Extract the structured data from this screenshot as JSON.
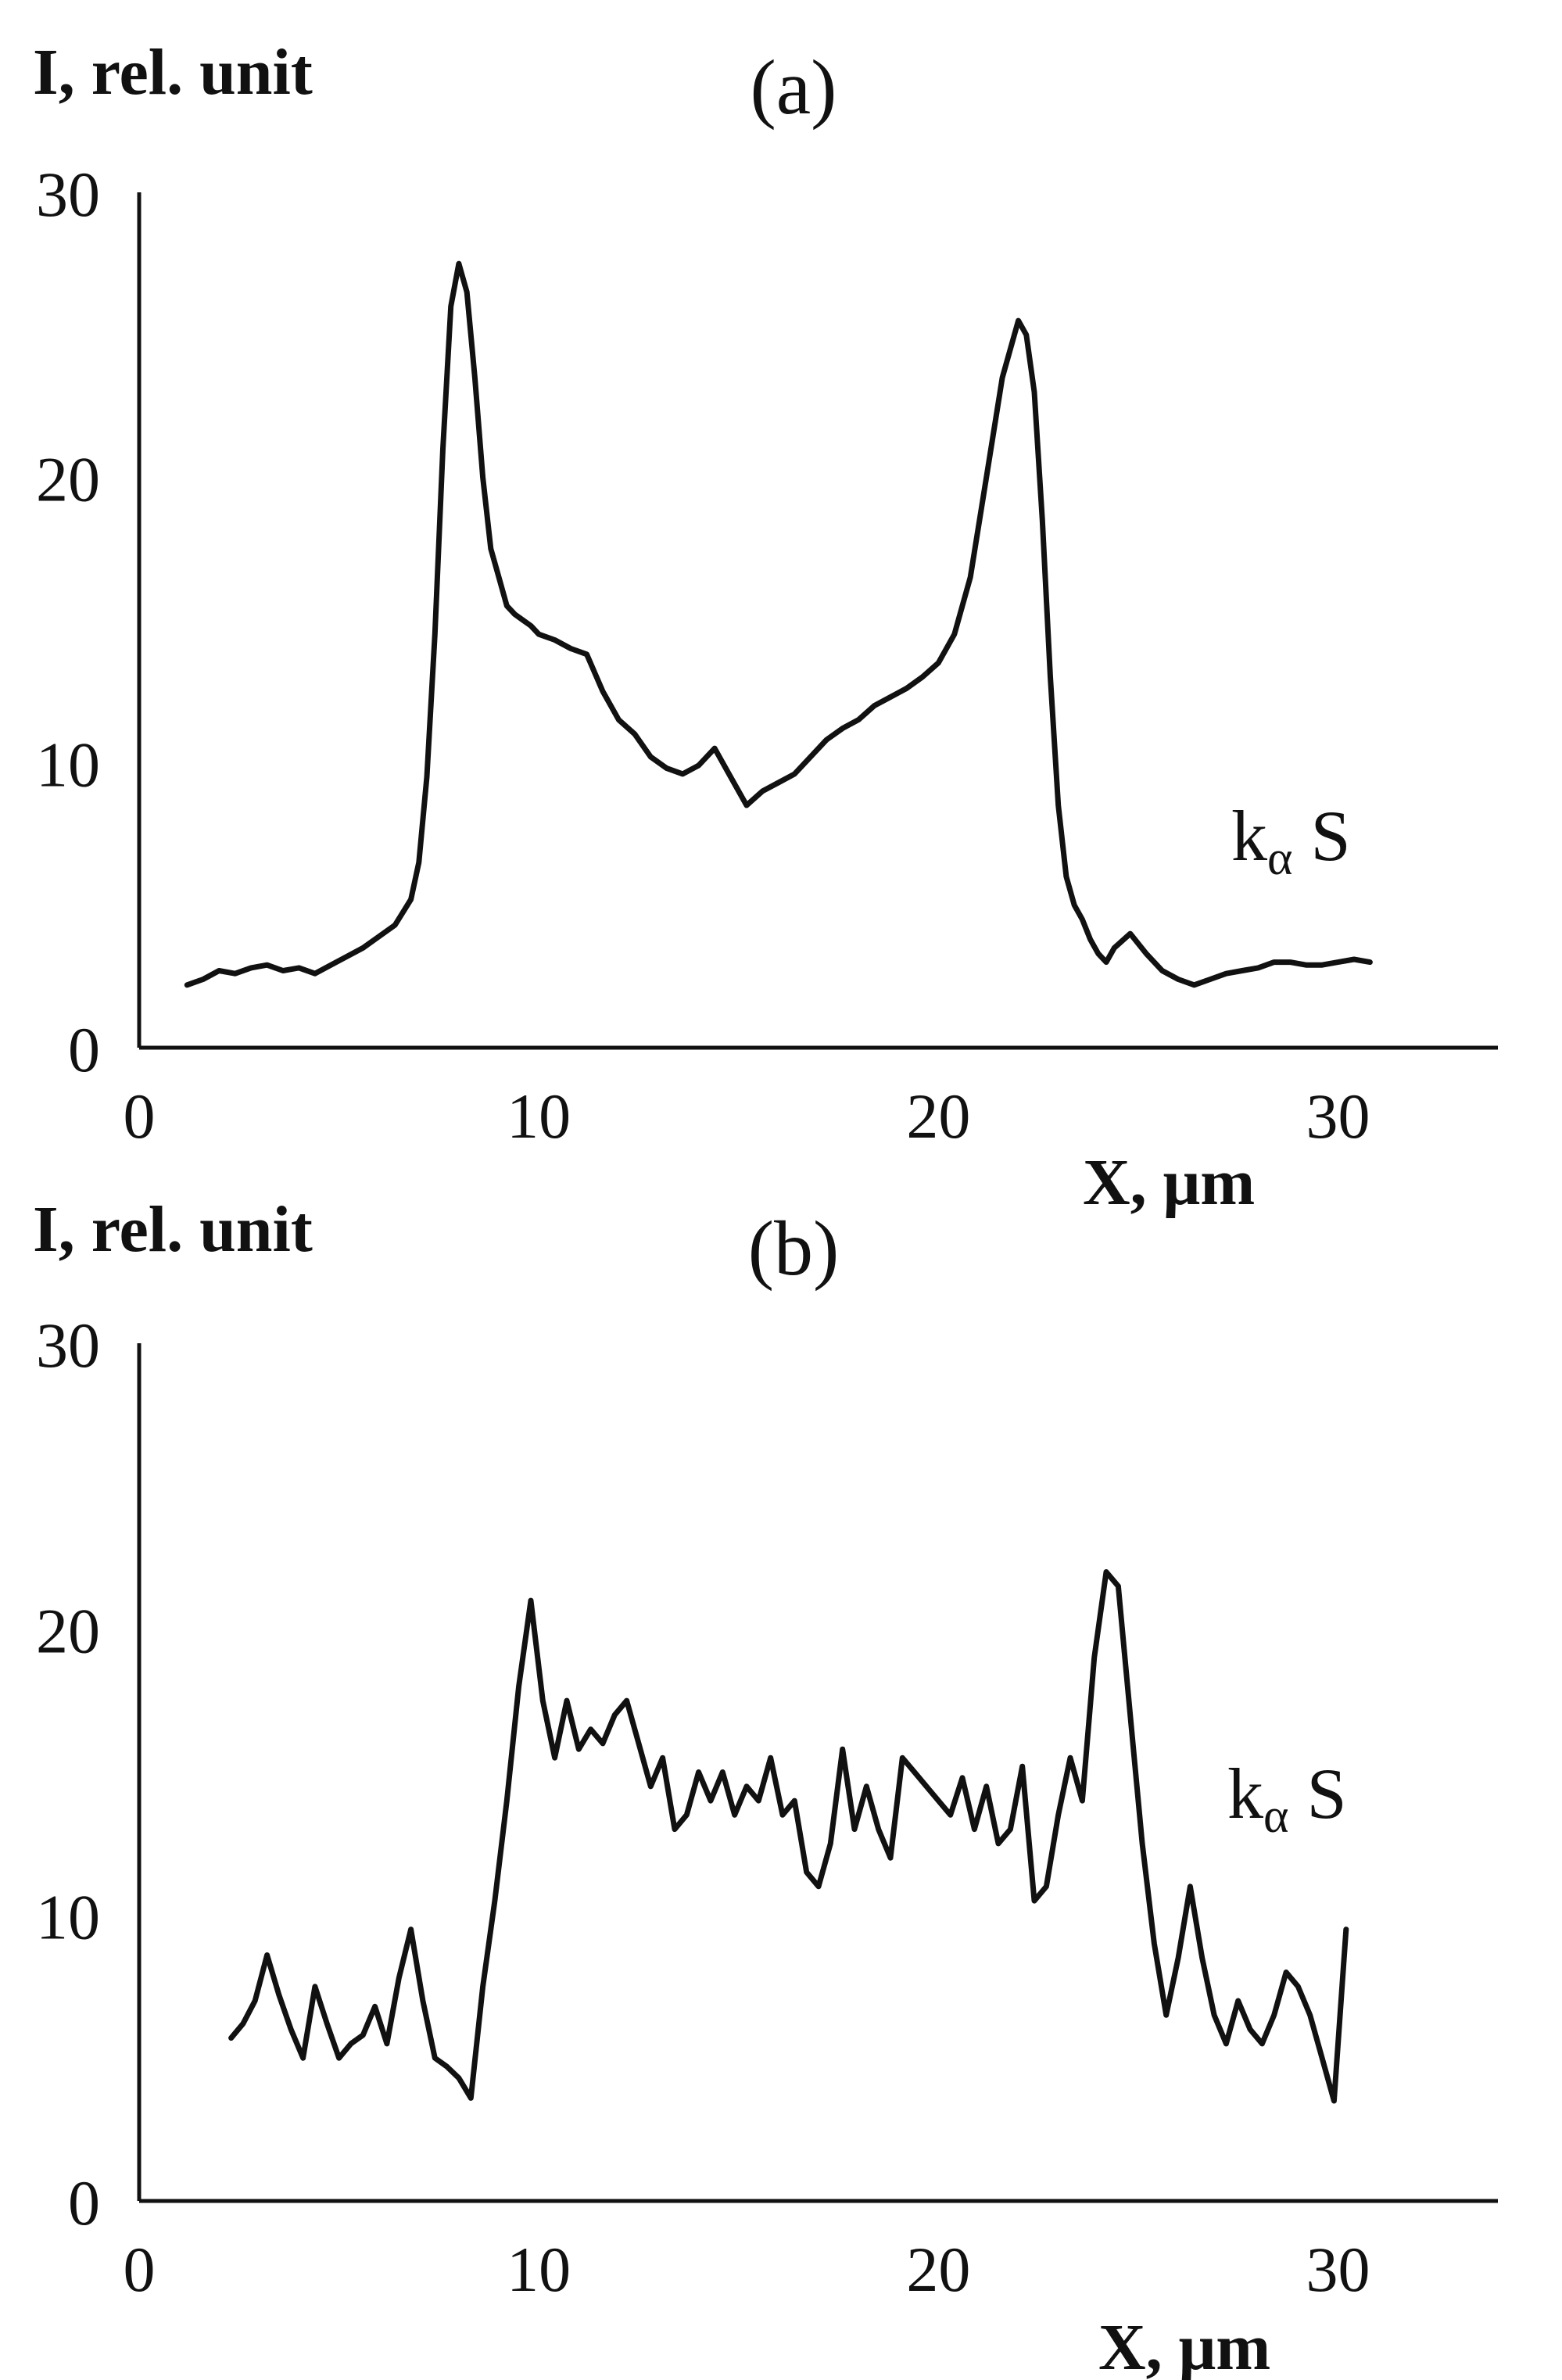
{
  "chart_data": [
    {
      "type": "line",
      "title": "(a)",
      "xlabel": "X, μm",
      "ylabel": "I, rel. unit",
      "xlim": [
        0,
        34
      ],
      "ylim": [
        0,
        30
      ],
      "xticks": [
        "0",
        "10",
        "20",
        "30"
      ],
      "yticks": [
        "0",
        "10",
        "20",
        "30"
      ],
      "grid": false,
      "annotation": {
        "main": "k",
        "sub": "α",
        "tail": " S"
      },
      "colors": {
        "line": "#111111",
        "axis": "#111111"
      },
      "series": [
        {
          "x": [
            1.2,
            1.6,
            2.0,
            2.4,
            2.8,
            3.2,
            3.6,
            4.0,
            4.4,
            4.8,
            5.2,
            5.6,
            6.0,
            6.4,
            6.8,
            7.0,
            7.2,
            7.4,
            7.6,
            7.8,
            8.0,
            8.2,
            8.4,
            8.6,
            8.8,
            9.0,
            9.2,
            9.4,
            9.6,
            9.8,
            10.0,
            10.4,
            10.8,
            11.2,
            11.6,
            12.0,
            12.4,
            12.8,
            13.2,
            13.6,
            14.0,
            14.4,
            14.8,
            15.2,
            15.6,
            16.0,
            16.4,
            16.8,
            17.2,
            17.6,
            18.0,
            18.4,
            18.8,
            19.2,
            19.6,
            20.0,
            20.4,
            20.8,
            21.2,
            21.6,
            22.0,
            22.2,
            22.4,
            22.6,
            22.8,
            23.0,
            23.2,
            23.4,
            23.6,
            23.8,
            24.0,
            24.2,
            24.4,
            24.8,
            25.2,
            25.6,
            26.0,
            26.4,
            26.8,
            27.2,
            27.6,
            28.0,
            28.4,
            28.8,
            29.2,
            29.6,
            30.0,
            30.4,
            30.8
          ],
          "y": [
            2.2,
            2.4,
            2.7,
            2.6,
            2.8,
            2.9,
            2.7,
            2.8,
            2.6,
            2.9,
            3.2,
            3.5,
            3.9,
            4.3,
            5.2,
            6.5,
            9.5,
            14.5,
            21.0,
            26.0,
            27.5,
            26.5,
            23.5,
            20.0,
            17.5,
            16.5,
            15.5,
            15.2,
            15.0,
            14.8,
            14.5,
            14.3,
            14.0,
            13.8,
            12.5,
            11.5,
            11.0,
            10.2,
            9.8,
            9.6,
            9.9,
            10.5,
            9.5,
            8.5,
            9.0,
            9.3,
            9.6,
            10.2,
            10.8,
            11.2,
            11.5,
            12.0,
            12.3,
            12.6,
            13.0,
            13.5,
            14.5,
            16.5,
            20.0,
            23.5,
            25.5,
            25.0,
            23.0,
            18.5,
            13.0,
            8.5,
            6.0,
            5.0,
            4.5,
            3.8,
            3.3,
            3.0,
            3.5,
            4.0,
            3.3,
            2.7,
            2.4,
            2.2,
            2.4,
            2.6,
            2.7,
            2.8,
            3.0,
            3.0,
            2.9,
            2.9,
            3.0,
            3.1,
            3.0
          ]
        }
      ]
    },
    {
      "type": "line",
      "title": "(b)",
      "xlabel": "X, μm",
      "ylabel": "I, rel. unit",
      "xlim": [
        0,
        34
      ],
      "ylim": [
        0,
        30
      ],
      "xticks": [
        "0",
        "10",
        "20",
        "30"
      ],
      "yticks": [
        "0",
        "10",
        "20",
        "30"
      ],
      "grid": false,
      "annotation": {
        "main": "k",
        "sub": "α",
        "tail": " S"
      },
      "colors": {
        "line": "#111111",
        "axis": "#111111"
      },
      "series": [
        {
          "x": [
            2.3,
            2.6,
            2.9,
            3.2,
            3.5,
            3.8,
            4.1,
            4.4,
            4.7,
            5.0,
            5.3,
            5.6,
            5.9,
            6.2,
            6.5,
            6.8,
            7.1,
            7.4,
            7.7,
            8.0,
            8.3,
            8.6,
            8.9,
            9.2,
            9.5,
            9.8,
            10.1,
            10.4,
            10.7,
            11.0,
            11.3,
            11.6,
            11.9,
            12.2,
            12.5,
            12.8,
            13.1,
            13.4,
            13.7,
            14.0,
            14.3,
            14.6,
            14.9,
            15.2,
            15.5,
            15.8,
            16.1,
            16.4,
            16.7,
            17.0,
            17.3,
            17.6,
            17.9,
            18.2,
            18.5,
            18.8,
            19.1,
            19.4,
            19.7,
            20.0,
            20.3,
            20.6,
            20.9,
            21.2,
            21.5,
            21.8,
            22.1,
            22.4,
            22.7,
            23.0,
            23.3,
            23.6,
            23.9,
            24.2,
            24.5,
            24.8,
            25.1,
            25.4,
            25.7,
            26.0,
            26.3,
            26.6,
            26.9,
            27.2,
            27.5,
            27.8,
            28.1,
            28.4,
            28.7,
            29.0,
            29.3,
            29.6,
            29.9,
            30.2
          ],
          "y": [
            5.7,
            6.2,
            7.0,
            8.6,
            7.2,
            6.0,
            5.0,
            7.5,
            6.2,
            5.0,
            5.5,
            5.8,
            6.8,
            5.5,
            7.8,
            9.5,
            7.0,
            5.0,
            4.7,
            4.3,
            3.6,
            7.5,
            10.5,
            14.0,
            18.0,
            21.0,
            17.5,
            15.5,
            17.5,
            15.8,
            16.5,
            16.0,
            17.0,
            17.5,
            16.0,
            14.5,
            15.5,
            13.0,
            13.5,
            15.0,
            14.0,
            15.0,
            13.5,
            14.5,
            14.0,
            15.5,
            13.5,
            14.0,
            11.5,
            11.0,
            12.5,
            15.8,
            13.0,
            14.5,
            13.0,
            12.0,
            15.5,
            15.0,
            14.5,
            14.0,
            13.5,
            14.8,
            13.0,
            14.5,
            12.5,
            13.0,
            15.2,
            10.5,
            11.0,
            13.5,
            15.5,
            14.0,
            19.0,
            22.0,
            21.5,
            17.0,
            12.5,
            9.0,
            6.5,
            8.5,
            11.0,
            8.5,
            6.5,
            5.5,
            7.0,
            6.0,
            5.5,
            6.5,
            8.0,
            7.5,
            6.5,
            5.0,
            3.5,
            9.5
          ]
        }
      ]
    }
  ]
}
